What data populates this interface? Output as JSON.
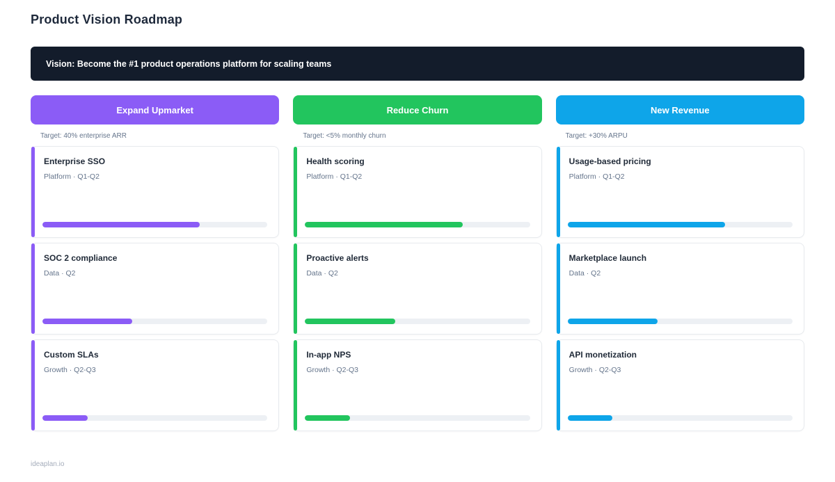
{
  "page": {
    "title": "Product Vision Roadmap",
    "vision_banner": "Vision: Become the #1 product operations platform for scaling teams",
    "footer": "ideaplan.io"
  },
  "colors": {
    "banner_bg": "#131c2b",
    "purple": "#8b5cf6",
    "green": "#22c55e",
    "blue": "#0ea5e9"
  },
  "columns": [
    {
      "name": "Expand Upmarket",
      "target": "Target: 40% enterprise ARR",
      "color": "#8b5cf6",
      "cards": [
        {
          "title": "Enterprise SSO",
          "meta": "Platform · Q1-Q2",
          "progress_pct": 70
        },
        {
          "title": "SOC 2 compliance",
          "meta": "Data · Q2",
          "progress_pct": 40
        },
        {
          "title": "Custom SLAs",
          "meta": "Growth · Q2-Q3",
          "progress_pct": 20
        }
      ]
    },
    {
      "name": "Reduce Churn",
      "target": "Target: <5% monthly churn",
      "color": "#22c55e",
      "cards": [
        {
          "title": "Health scoring",
          "meta": "Platform · Q1-Q2",
          "progress_pct": 70
        },
        {
          "title": "Proactive alerts",
          "meta": "Data · Q2",
          "progress_pct": 40
        },
        {
          "title": "In-app NPS",
          "meta": "Growth · Q2-Q3",
          "progress_pct": 20
        }
      ]
    },
    {
      "name": "New Revenue",
      "target": "Target: +30% ARPU",
      "color": "#0ea5e9",
      "cards": [
        {
          "title": "Usage-based pricing",
          "meta": "Platform · Q1-Q2",
          "progress_pct": 70
        },
        {
          "title": "Marketplace launch",
          "meta": "Data · Q2",
          "progress_pct": 40
        },
        {
          "title": "API monetization",
          "meta": "Growth · Q2-Q3",
          "progress_pct": 20
        }
      ]
    }
  ]
}
